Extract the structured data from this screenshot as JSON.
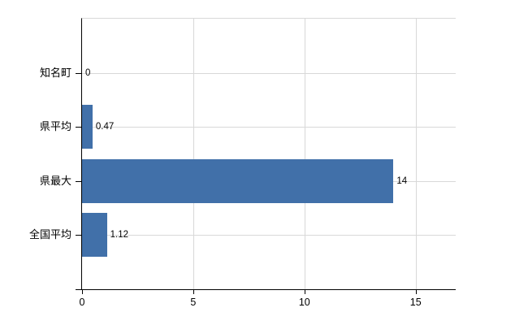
{
  "chart_data": {
    "type": "bar",
    "orientation": "horizontal",
    "title": "",
    "xlabel": "",
    "ylabel": "",
    "categories": [
      "知名町",
      "県平均",
      "県最大",
      "全国平均"
    ],
    "values": [
      0,
      0.47,
      14,
      1.12
    ],
    "value_labels": [
      "0",
      "0.47",
      "14",
      "1.12"
    ],
    "x_ticks": [
      0,
      5,
      10,
      15
    ],
    "x_tick_labels": [
      "0",
      "5",
      "10",
      "15"
    ],
    "xlim": [
      0,
      16.8
    ],
    "grid": "on",
    "legend": "none",
    "colors": {
      "bar": "#4170a9",
      "grid": "#d8d8d8",
      "axis": "#000000",
      "text": "#000000",
      "background": "#ffffff"
    }
  }
}
